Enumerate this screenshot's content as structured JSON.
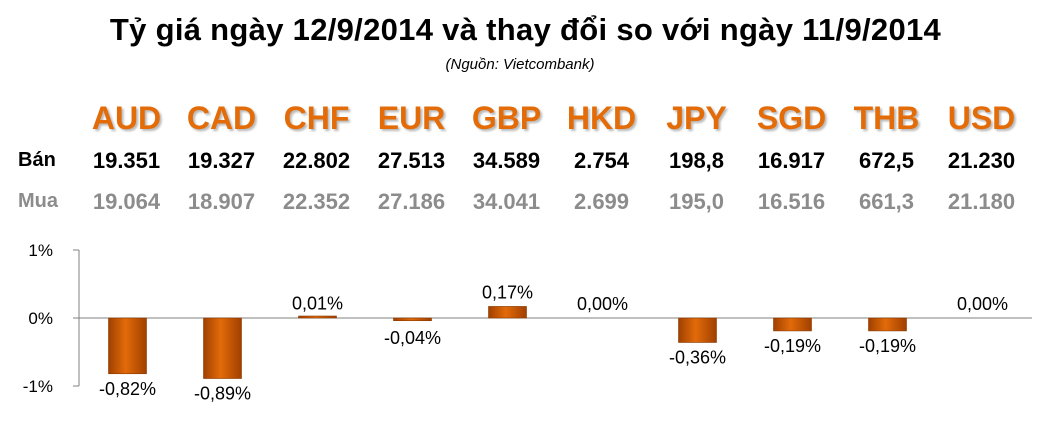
{
  "title": "Tỷ giá ngày 12/9/2014 và thay đổi so với ngày 11/9/2014",
  "source": "(Nguồn: Vietcombank)",
  "rows": {
    "sell_label": "Bán",
    "buy_label": "Mua"
  },
  "colors": {
    "currency": "#e36c09",
    "bar": "#e26b0a",
    "bar_dark": "#a04000",
    "buy_text": "#8c8c8c"
  },
  "currencies": [
    {
      "code": "AUD",
      "sell": "19.351",
      "buy": "19.064"
    },
    {
      "code": "CAD",
      "sell": "19.327",
      "buy": "18.907"
    },
    {
      "code": "CHF",
      "sell": "22.802",
      "buy": "22.352"
    },
    {
      "code": "EUR",
      "sell": "27.513",
      "buy": "27.186"
    },
    {
      "code": "GBP",
      "sell": "34.589",
      "buy": "34.041"
    },
    {
      "code": "HKD",
      "sell": "2.754",
      "buy": "2.699"
    },
    {
      "code": "JPY",
      "sell": "198,8",
      "buy": "195,0"
    },
    {
      "code": "SGD",
      "sell": "16.917",
      "buy": "16.516"
    },
    {
      "code": "THB",
      "sell": "672,5",
      "buy": "661,3"
    },
    {
      "code": "USD",
      "sell": "21.230",
      "buy": "21.180"
    }
  ],
  "chart_data": {
    "type": "bar",
    "categories": [
      "AUD",
      "CAD",
      "CHF",
      "EUR",
      "GBP",
      "HKD",
      "JPY",
      "SGD",
      "THB",
      "USD"
    ],
    "values": [
      -0.82,
      -0.89,
      0.01,
      -0.04,
      0.17,
      0.0,
      -0.36,
      -0.19,
      -0.19,
      0.0
    ],
    "data_labels": [
      "-0,82%",
      "-0,89%",
      "0,01%",
      "-0,04%",
      "0,17%",
      "0,00%",
      "-0,36%",
      "-0,19%",
      "-0,19%",
      "0,00%"
    ],
    "yticks": [
      1,
      0,
      -1
    ],
    "ytick_labels": [
      "1%",
      "0%",
      "-1%"
    ],
    "ylim": [
      -1,
      1
    ],
    "grid": false,
    "legend": "none"
  }
}
